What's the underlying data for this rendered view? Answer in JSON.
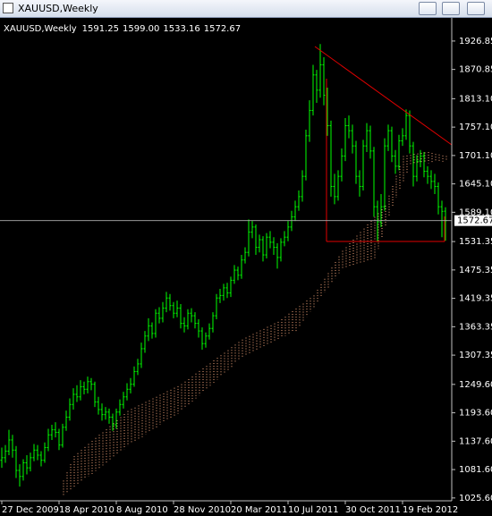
{
  "window_title": "XAUUSD,Weekly",
  "chart_data": {
    "type": "ohlc",
    "symbol": "XAUUSD,Weekly",
    "last_bar": {
      "values": [
        1591.25,
        1599.0,
        1533.16,
        1572.67
      ],
      "value_labels": [
        "1591.25",
        "1599.00",
        "1533.16",
        "1572.67"
      ]
    },
    "categories": [
      "27 Dec 2009",
      null,
      null,
      null,
      null,
      null,
      null,
      null,
      null,
      null,
      null,
      null,
      null,
      null,
      null,
      null,
      "18 Apr 2010",
      null,
      null,
      null,
      null,
      null,
      null,
      null,
      null,
      null,
      null,
      null,
      null,
      null,
      null,
      null,
      "8 Aug 2010",
      null,
      null,
      null,
      null,
      null,
      null,
      null,
      null,
      null,
      null,
      null,
      null,
      null,
      null,
      null,
      "28 Nov 2010",
      null,
      null,
      null,
      null,
      null,
      null,
      null,
      null,
      null,
      null,
      null,
      null,
      null,
      null,
      null,
      "20 Mar 2011",
      null,
      null,
      null,
      null,
      null,
      null,
      null,
      null,
      null,
      null,
      null,
      null,
      null,
      null,
      null,
      "10 Jul 2011",
      null,
      null,
      null,
      null,
      null,
      null,
      null,
      null,
      null,
      null,
      null,
      null,
      null,
      null,
      null,
      "30 Oct 2011",
      null,
      null,
      null,
      null,
      null,
      null,
      null,
      null,
      null,
      null,
      null,
      null,
      null,
      null,
      null,
      "19 Feb 2012",
      null,
      null,
      null,
      null,
      null,
      null,
      null,
      null,
      null,
      null,
      null,
      null
    ],
    "open": [
      1100,
      1105,
      1118,
      1140,
      1120,
      1080,
      1068,
      1095,
      1085,
      1105,
      1120,
      1110,
      1100,
      1125,
      1150,
      1160,
      1155,
      1130,
      1165,
      1185,
      1210,
      1230,
      1225,
      1245,
      1240,
      1255,
      1250,
      1215,
      1200,
      1190,
      1195,
      1185,
      1170,
      1195,
      1210,
      1225,
      1240,
      1250,
      1275,
      1290,
      1320,
      1345,
      1365,
      1350,
      1390,
      1380,
      1400,
      1420,
      1405,
      1390,
      1400,
      1370,
      1365,
      1390,
      1385,
      1370,
      1355,
      1330,
      1345,
      1360,
      1385,
      1420,
      1425,
      1440,
      1430,
      1455,
      1475,
      1465,
      1495,
      1510,
      1550,
      1560,
      1520,
      1535,
      1505,
      1540,
      1530,
      1520,
      1500,
      1530,
      1540,
      1560,
      1580,
      1600,
      1620,
      1660,
      1740,
      1790,
      1860,
      1830,
      1880,
      1820,
      1760,
      1640,
      1620,
      1660,
      1700,
      1760,
      1750,
      1720,
      1660,
      1640,
      1720,
      1750,
      1710,
      1600,
      1570,
      1600,
      1720,
      1750,
      1700,
      1680,
      1730,
      1740,
      1780,
      1720,
      1660,
      1690,
      1700,
      1670,
      1660,
      1650,
      1640,
      1600,
      1591.25
    ],
    "high": [
      1125,
      1130,
      1160,
      1150,
      1128,
      1092,
      1102,
      1110,
      1115,
      1132,
      1130,
      1118,
      1135,
      1162,
      1170,
      1175,
      1162,
      1172,
      1198,
      1222,
      1242,
      1248,
      1258,
      1255,
      1265,
      1262,
      1255,
      1225,
      1212,
      1205,
      1202,
      1192,
      1202,
      1220,
      1235,
      1252,
      1262,
      1285,
      1300,
      1332,
      1355,
      1380,
      1372,
      1398,
      1402,
      1412,
      1432,
      1428,
      1412,
      1415,
      1408,
      1382,
      1398,
      1400,
      1392,
      1378,
      1362,
      1352,
      1370,
      1392,
      1428,
      1438,
      1448,
      1450,
      1462,
      1485,
      1482,
      1505,
      1520,
      1575,
      1572,
      1565,
      1545,
      1542,
      1548,
      1552,
      1540,
      1528,
      1538,
      1552,
      1572,
      1592,
      1612,
      1632,
      1672,
      1752,
      1810,
      1880,
      1870,
      1921,
      1895,
      1835,
      1770,
      1665,
      1672,
      1715,
      1775,
      1780,
      1762,
      1730,
      1672,
      1732,
      1765,
      1760,
      1718,
      1612,
      1625,
      1735,
      1762,
      1758,
      1712,
      1742,
      1755,
      1792,
      1790,
      1728,
      1702,
      1712,
      1708,
      1680,
      1672,
      1665,
      1648,
      1612,
      1599.0
    ],
    "low": [
      1085,
      1095,
      1110,
      1105,
      1065,
      1048,
      1060,
      1072,
      1078,
      1098,
      1100,
      1088,
      1095,
      1118,
      1140,
      1145,
      1120,
      1125,
      1158,
      1178,
      1200,
      1215,
      1218,
      1230,
      1232,
      1238,
      1205,
      1190,
      1178,
      1180,
      1172,
      1158,
      1162,
      1188,
      1202,
      1218,
      1232,
      1245,
      1268,
      1282,
      1312,
      1335,
      1340,
      1342,
      1370,
      1372,
      1392,
      1395,
      1380,
      1382,
      1360,
      1352,
      1358,
      1372,
      1360,
      1342,
      1318,
      1322,
      1338,
      1352,
      1378,
      1410,
      1415,
      1420,
      1422,
      1448,
      1455,
      1458,
      1488,
      1502,
      1538,
      1505,
      1510,
      1492,
      1498,
      1518,
      1505,
      1478,
      1492,
      1522,
      1532,
      1552,
      1572,
      1592,
      1610,
      1652,
      1728,
      1780,
      1805,
      1815,
      1800,
      1740,
      1620,
      1605,
      1612,
      1650,
      1690,
      1735,
      1705,
      1645,
      1620,
      1632,
      1708,
      1695,
      1580,
      1531,
      1560,
      1592,
      1710,
      1688,
      1665,
      1672,
      1720,
      1732,
      1705,
      1640,
      1650,
      1678,
      1658,
      1645,
      1635,
      1625,
      1585,
      1540,
      1533.16
    ],
    "close": [
      1105,
      1118,
      1140,
      1120,
      1080,
      1068,
      1095,
      1085,
      1105,
      1120,
      1110,
      1100,
      1125,
      1150,
      1160,
      1155,
      1130,
      1165,
      1185,
      1210,
      1230,
      1225,
      1245,
      1240,
      1255,
      1250,
      1215,
      1200,
      1190,
      1195,
      1185,
      1170,
      1195,
      1210,
      1225,
      1240,
      1250,
      1275,
      1290,
      1320,
      1345,
      1365,
      1350,
      1390,
      1380,
      1400,
      1420,
      1405,
      1390,
      1400,
      1370,
      1365,
      1390,
      1385,
      1370,
      1355,
      1330,
      1345,
      1360,
      1385,
      1420,
      1425,
      1440,
      1430,
      1455,
      1475,
      1465,
      1495,
      1510,
      1550,
      1560,
      1520,
      1535,
      1505,
      1540,
      1530,
      1520,
      1500,
      1530,
      1540,
      1560,
      1580,
      1600,
      1620,
      1660,
      1740,
      1790,
      1860,
      1830,
      1880,
      1820,
      1760,
      1640,
      1620,
      1660,
      1700,
      1760,
      1750,
      1720,
      1660,
      1640,
      1720,
      1750,
      1710,
      1600,
      1570,
      1600,
      1720,
      1750,
      1700,
      1680,
      1730,
      1740,
      1780,
      1720,
      1660,
      1690,
      1700,
      1670,
      1660,
      1650,
      1640,
      1600,
      1591,
      1572.67
    ],
    "cloud_upper": [
      null,
      null,
      null,
      null,
      null,
      null,
      null,
      null,
      null,
      null,
      null,
      null,
      null,
      null,
      null,
      null,
      null,
      1060,
      1076,
      1092,
      1108,
      1114,
      1120,
      1126,
      1132,
      1138,
      1144,
      1150,
      1155,
      1161,
      1167,
      1173,
      1179,
      1185,
      1191,
      1197,
      1201,
      1204,
      1208,
      1211,
      1215,
      1218,
      1222,
      1225,
      1229,
      1232,
      1236,
      1239,
      1243,
      1246,
      1250,
      1255,
      1260,
      1265,
      1271,
      1276,
      1281,
      1286,
      1291,
      1297,
      1302,
      1307,
      1312,
      1317,
      1323,
      1328,
      1333,
      1338,
      1342,
      1345,
      1349,
      1352,
      1356,
      1359,
      1363,
      1366,
      1370,
      1373,
      1378,
      1383,
      1389,
      1394,
      1399,
      1404,
      1409,
      1415,
      1420,
      1425,
      1436,
      1447,
      1458,
      1469,
      1480,
      1491,
      1502,
      1513,
      1520,
      1528,
      1535,
      1543,
      1550,
      1557,
      1565,
      1572,
      1580,
      1587,
      1595,
      1602,
      1622,
      1641,
      1661,
      1680,
      1700,
      1701,
      1702,
      1704,
      1705,
      1706,
      1707,
      1708,
      1706,
      1704,
      1703,
      1701,
      1700
    ],
    "cloud_lower": [
      null,
      null,
      null,
      null,
      null,
      null,
      null,
      null,
      null,
      null,
      null,
      null,
      null,
      null,
      null,
      null,
      null,
      1030,
      1035,
      1041,
      1046,
      1052,
      1057,
      1063,
      1068,
      1073,
      1079,
      1084,
      1090,
      1095,
      1101,
      1106,
      1111,
      1117,
      1122,
      1128,
      1133,
      1137,
      1142,
      1146,
      1151,
      1156,
      1160,
      1165,
      1170,
      1174,
      1179,
      1183,
      1188,
      1192,
      1197,
      1203,
      1209,
      1216,
      1222,
      1228,
      1234,
      1241,
      1247,
      1253,
      1259,
      1266,
      1272,
      1278,
      1284,
      1291,
      1297,
      1303,
      1306,
      1310,
      1313,
      1317,
      1320,
      1324,
      1327,
      1331,
      1334,
      1338,
      1341,
      1345,
      1348,
      1352,
      1355,
      1364,
      1374,
      1383,
      1393,
      1402,
      1412,
      1421,
      1431,
      1440,
      1450,
      1459,
      1469,
      1478,
      1480,
      1482,
      1484,
      1486,
      1488,
      1490,
      1492,
      1494,
      1496,
      1517,
      1538,
      1560,
      1581,
      1602,
      1618,
      1634,
      1650,
      1666,
      1682,
      1683,
      1684,
      1685,
      1686,
      1686,
      1687,
      1688,
      1688,
      1689,
      1690
    ],
    "bar_color": "#00ff00",
    "cloud_color": "#f4a57a",
    "ylim": [
      1020,
      1969
    ],
    "yticks": [
      1926.85,
      1870.85,
      {
        "value": 1813.1,
        "label": "1813.10"
      },
      {
        "value": 1757.1,
        "label": "1757.10"
      },
      {
        "value": 1701.1,
        "label": "1701.10"
      },
      {
        "value": 1645.1,
        "label": "1645.10"
      },
      {
        "value": 1589.1,
        "label": "1589.10"
      },
      1531.35,
      1475.35,
      1419.35,
      1363.35,
      1307.35,
      {
        "value": 1249.6,
        "label": "1249.60"
      },
      {
        "value": 1193.6,
        "label": "1193.60"
      },
      {
        "value": 1137.6,
        "label": "1137.60"
      },
      {
        "value": 1081.6,
        "label": "1081.60"
      },
      {
        "value": 1025.6,
        "label": "1025.60"
      }
    ]
  }
}
